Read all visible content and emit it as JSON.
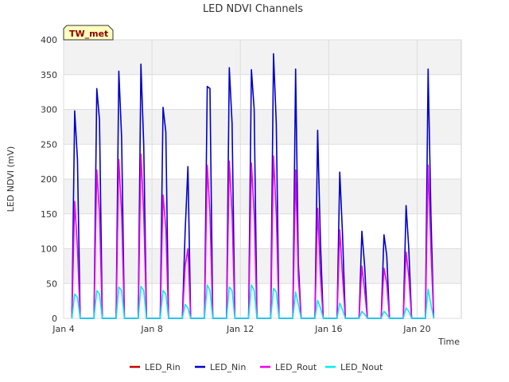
{
  "chart_data": {
    "type": "line",
    "title": "LED NDVI Channels",
    "xlabel": "Time",
    "ylabel": "LED NDVI (mV)",
    "badge": "TW_met",
    "xlim": [
      "2023-01-04",
      "2023-01-22"
    ],
    "ylim": [
      0,
      400
    ],
    "y_ticks": [
      0,
      50,
      100,
      150,
      200,
      250,
      300,
      350,
      400
    ],
    "x_ticks": [
      {
        "date": "2023-01-04",
        "label": "Jan 4"
      },
      {
        "date": "2023-01-08",
        "label": "Jan 8"
      },
      {
        "date": "2023-01-12",
        "label": "Jan 12"
      },
      {
        "date": "2023-01-16",
        "label": "Jan 16"
      },
      {
        "date": "2023-01-20",
        "label": "Jan 20"
      }
    ],
    "grid": true,
    "legend_position": "bottom",
    "series": [
      {
        "name": "LED_Rin",
        "color": "#cc0000",
        "points": []
      },
      {
        "name": "LED_Nin",
        "color": "#0000cc",
        "points": [
          [
            "2023-01-04 09:00",
            0
          ],
          [
            "2023-01-04 12:00",
            298
          ],
          [
            "2023-01-04 15:00",
            228
          ],
          [
            "2023-01-04 18:00",
            0
          ],
          [
            "2023-01-05 09:00",
            0
          ],
          [
            "2023-01-05 12:00",
            330
          ],
          [
            "2023-01-05 15:00",
            285
          ],
          [
            "2023-01-05 18:00",
            0
          ],
          [
            "2023-01-06 09:00",
            0
          ],
          [
            "2023-01-06 12:00",
            355
          ],
          [
            "2023-01-06 15:00",
            260
          ],
          [
            "2023-01-06 18:00",
            0
          ],
          [
            "2023-01-07 09:00",
            0
          ],
          [
            "2023-01-07 12:00",
            365
          ],
          [
            "2023-01-07 15:00",
            250
          ],
          [
            "2023-01-07 18:00",
            0
          ],
          [
            "2023-01-08 09:00",
            0
          ],
          [
            "2023-01-08 12:00",
            303
          ],
          [
            "2023-01-08 15:00",
            268
          ],
          [
            "2023-01-08 18:00",
            0
          ],
          [
            "2023-01-09 09:00",
            0
          ],
          [
            "2023-01-09 12:00",
            125
          ],
          [
            "2023-01-09 15:00",
            218
          ],
          [
            "2023-01-09 18:00",
            0
          ],
          [
            "2023-01-10 09:00",
            0
          ],
          [
            "2023-01-10 12:00",
            333
          ],
          [
            "2023-01-10 15:00",
            330
          ],
          [
            "2023-01-10 18:00",
            0
          ],
          [
            "2023-01-11 09:00",
            0
          ],
          [
            "2023-01-11 12:00",
            360
          ],
          [
            "2023-01-11 15:00",
            280
          ],
          [
            "2023-01-11 18:00",
            0
          ],
          [
            "2023-01-12 09:00",
            0
          ],
          [
            "2023-01-12 12:00",
            357
          ],
          [
            "2023-01-12 15:00",
            300
          ],
          [
            "2023-01-12 18:00",
            0
          ],
          [
            "2023-01-13 09:00",
            0
          ],
          [
            "2023-01-13 12:00",
            380
          ],
          [
            "2023-01-13 15:00",
            280
          ],
          [
            "2023-01-13 18:00",
            0
          ],
          [
            "2023-01-14 09:00",
            0
          ],
          [
            "2023-01-14 12:00",
            358
          ],
          [
            "2023-01-14 15:00",
            80
          ],
          [
            "2023-01-14 18:00",
            0
          ],
          [
            "2023-01-15 09:00",
            0
          ],
          [
            "2023-01-15 12:00",
            270
          ],
          [
            "2023-01-15 15:00",
            110
          ],
          [
            "2023-01-15 18:00",
            0
          ],
          [
            "2023-01-16 09:00",
            0
          ],
          [
            "2023-01-16 12:00",
            210
          ],
          [
            "2023-01-16 15:00",
            120
          ],
          [
            "2023-01-16 18:00",
            0
          ],
          [
            "2023-01-17 09:00",
            0
          ],
          [
            "2023-01-17 12:00",
            125
          ],
          [
            "2023-01-17 15:00",
            75
          ],
          [
            "2023-01-17 18:00",
            0
          ],
          [
            "2023-01-18 09:00",
            0
          ],
          [
            "2023-01-18 12:00",
            120
          ],
          [
            "2023-01-18 15:00",
            90
          ],
          [
            "2023-01-18 18:00",
            0
          ],
          [
            "2023-01-19 09:00",
            0
          ],
          [
            "2023-01-19 12:00",
            162
          ],
          [
            "2023-01-19 15:00",
            100
          ],
          [
            "2023-01-19 18:00",
            0
          ],
          [
            "2023-01-20 09:00",
            0
          ],
          [
            "2023-01-20 12:00",
            358
          ],
          [
            "2023-01-20 15:00",
            150
          ],
          [
            "2023-01-20 18:00",
            0
          ]
        ]
      },
      {
        "name": "LED_Rout",
        "color": "#ee00ee",
        "points": [
          [
            "2023-01-04 09:00",
            0
          ],
          [
            "2023-01-04 12:00",
            168
          ],
          [
            "2023-01-04 15:00",
            100
          ],
          [
            "2023-01-04 18:00",
            0
          ],
          [
            "2023-01-05 09:00",
            0
          ],
          [
            "2023-01-05 12:00",
            213
          ],
          [
            "2023-01-05 15:00",
            150
          ],
          [
            "2023-01-05 18:00",
            0
          ],
          [
            "2023-01-06 09:00",
            0
          ],
          [
            "2023-01-06 12:00",
            228
          ],
          [
            "2023-01-06 15:00",
            150
          ],
          [
            "2023-01-06 18:00",
            0
          ],
          [
            "2023-01-07 09:00",
            0
          ],
          [
            "2023-01-07 12:00",
            236
          ],
          [
            "2023-01-07 15:00",
            150
          ],
          [
            "2023-01-07 18:00",
            0
          ],
          [
            "2023-01-08 09:00",
            0
          ],
          [
            "2023-01-08 12:00",
            177
          ],
          [
            "2023-01-08 15:00",
            130
          ],
          [
            "2023-01-08 18:00",
            0
          ],
          [
            "2023-01-09 09:00",
            0
          ],
          [
            "2023-01-09 12:00",
            75
          ],
          [
            "2023-01-09 15:00",
            100
          ],
          [
            "2023-01-09 18:00",
            0
          ],
          [
            "2023-01-10 09:00",
            0
          ],
          [
            "2023-01-10 12:00",
            220
          ],
          [
            "2023-01-10 15:00",
            150
          ],
          [
            "2023-01-10 18:00",
            0
          ],
          [
            "2023-01-11 09:00",
            0
          ],
          [
            "2023-01-11 12:00",
            226
          ],
          [
            "2023-01-11 15:00",
            150
          ],
          [
            "2023-01-11 18:00",
            0
          ],
          [
            "2023-01-12 09:00",
            0
          ],
          [
            "2023-01-12 12:00",
            223
          ],
          [
            "2023-01-12 15:00",
            150
          ],
          [
            "2023-01-12 18:00",
            0
          ],
          [
            "2023-01-13 09:00",
            0
          ],
          [
            "2023-01-13 12:00",
            233
          ],
          [
            "2023-01-13 15:00",
            150
          ],
          [
            "2023-01-13 18:00",
            0
          ],
          [
            "2023-01-14 09:00",
            0
          ],
          [
            "2023-01-14 12:00",
            213
          ],
          [
            "2023-01-14 15:00",
            60
          ],
          [
            "2023-01-14 18:00",
            0
          ],
          [
            "2023-01-15 09:00",
            0
          ],
          [
            "2023-01-15 12:00",
            158
          ],
          [
            "2023-01-15 15:00",
            60
          ],
          [
            "2023-01-15 18:00",
            0
          ],
          [
            "2023-01-16 09:00",
            0
          ],
          [
            "2023-01-16 12:00",
            127
          ],
          [
            "2023-01-16 15:00",
            60
          ],
          [
            "2023-01-16 18:00",
            0
          ],
          [
            "2023-01-17 09:00",
            0
          ],
          [
            "2023-01-17 12:00",
            75
          ],
          [
            "2023-01-17 15:00",
            40
          ],
          [
            "2023-01-17 18:00",
            0
          ],
          [
            "2023-01-18 09:00",
            0
          ],
          [
            "2023-01-18 12:00",
            72
          ],
          [
            "2023-01-18 15:00",
            50
          ],
          [
            "2023-01-18 18:00",
            0
          ],
          [
            "2023-01-19 09:00",
            0
          ],
          [
            "2023-01-19 12:00",
            95
          ],
          [
            "2023-01-19 15:00",
            60
          ],
          [
            "2023-01-19 18:00",
            0
          ],
          [
            "2023-01-20 09:00",
            0
          ],
          [
            "2023-01-20 12:00",
            220
          ],
          [
            "2023-01-20 15:00",
            100
          ],
          [
            "2023-01-20 18:00",
            0
          ]
        ]
      },
      {
        "name": "LED_Nout",
        "color": "#00eeee",
        "points": [
          [
            "2023-01-04 09:00",
            0
          ],
          [
            "2023-01-04 12:00",
            35
          ],
          [
            "2023-01-04 15:00",
            30
          ],
          [
            "2023-01-04 18:00",
            0
          ],
          [
            "2023-01-05 09:00",
            0
          ],
          [
            "2023-01-05 12:00",
            40
          ],
          [
            "2023-01-05 15:00",
            35
          ],
          [
            "2023-01-05 18:00",
            0
          ],
          [
            "2023-01-06 09:00",
            0
          ],
          [
            "2023-01-06 12:00",
            45
          ],
          [
            "2023-01-06 15:00",
            40
          ],
          [
            "2023-01-06 18:00",
            0
          ],
          [
            "2023-01-07 09:00",
            0
          ],
          [
            "2023-01-07 12:00",
            46
          ],
          [
            "2023-01-07 15:00",
            40
          ],
          [
            "2023-01-07 18:00",
            0
          ],
          [
            "2023-01-08 09:00",
            0
          ],
          [
            "2023-01-08 12:00",
            40
          ],
          [
            "2023-01-08 15:00",
            35
          ],
          [
            "2023-01-08 18:00",
            0
          ],
          [
            "2023-01-09 09:00",
            0
          ],
          [
            "2023-01-09 12:00",
            20
          ],
          [
            "2023-01-09 15:00",
            15
          ],
          [
            "2023-01-09 18:00",
            0
          ],
          [
            "2023-01-10 09:00",
            0
          ],
          [
            "2023-01-10 12:00",
            48
          ],
          [
            "2023-01-10 15:00",
            40
          ],
          [
            "2023-01-10 18:00",
            0
          ],
          [
            "2023-01-11 09:00",
            0
          ],
          [
            "2023-01-11 12:00",
            45
          ],
          [
            "2023-01-11 15:00",
            40
          ],
          [
            "2023-01-11 18:00",
            0
          ],
          [
            "2023-01-12 09:00",
            0
          ],
          [
            "2023-01-12 12:00",
            48
          ],
          [
            "2023-01-12 15:00",
            40
          ],
          [
            "2023-01-12 18:00",
            0
          ],
          [
            "2023-01-13 09:00",
            0
          ],
          [
            "2023-01-13 12:00",
            43
          ],
          [
            "2023-01-13 15:00",
            38
          ],
          [
            "2023-01-13 18:00",
            0
          ],
          [
            "2023-01-14 09:00",
            0
          ],
          [
            "2023-01-14 12:00",
            38
          ],
          [
            "2023-01-14 15:00",
            20
          ],
          [
            "2023-01-14 18:00",
            0
          ],
          [
            "2023-01-15 09:00",
            0
          ],
          [
            "2023-01-15 12:00",
            26
          ],
          [
            "2023-01-15 15:00",
            15
          ],
          [
            "2023-01-15 18:00",
            0
          ],
          [
            "2023-01-16 09:00",
            0
          ],
          [
            "2023-01-16 12:00",
            22
          ],
          [
            "2023-01-16 15:00",
            12
          ],
          [
            "2023-01-16 18:00",
            0
          ],
          [
            "2023-01-17 09:00",
            0
          ],
          [
            "2023-01-17 12:00",
            10
          ],
          [
            "2023-01-17 15:00",
            6
          ],
          [
            "2023-01-17 18:00",
            0
          ],
          [
            "2023-01-18 09:00",
            0
          ],
          [
            "2023-01-18 12:00",
            10
          ],
          [
            "2023-01-18 15:00",
            6
          ],
          [
            "2023-01-18 18:00",
            0
          ],
          [
            "2023-01-19 09:00",
            0
          ],
          [
            "2023-01-19 12:00",
            15
          ],
          [
            "2023-01-19 15:00",
            10
          ],
          [
            "2023-01-19 18:00",
            0
          ],
          [
            "2023-01-20 09:00",
            0
          ],
          [
            "2023-01-20 12:00",
            42
          ],
          [
            "2023-01-20 15:00",
            20
          ],
          [
            "2023-01-20 18:00",
            0
          ]
        ]
      }
    ]
  }
}
